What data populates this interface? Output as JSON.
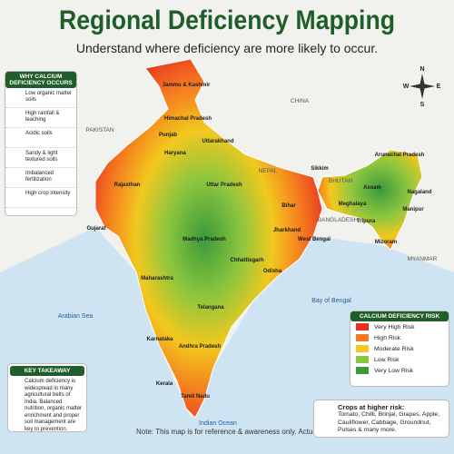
{
  "header": {
    "title": "Regional Deficiency Mapping",
    "subtitle": "Understand where deficiency are more likely to occur."
  },
  "causes": {
    "title": "WHY CALCIUM DEFICIENCY OCCURS",
    "items": [
      "Low organic matter soils",
      "High rainfall & leaching",
      "Acidic soils",
      "Sandy & light textured soils",
      "Imbalanced fertilization",
      "High crop intensity"
    ]
  },
  "map": {
    "countries": [
      "PAKISTAN",
      "CHINA",
      "NEPAL",
      "BHUTAN",
      "BANGLADESH",
      "MYANMAR"
    ],
    "seas": [
      "Arabian Sea",
      "Bay of Bengal",
      "Indian Ocean"
    ],
    "states": [
      "Jammu & Kashmir",
      "Himachal Pradesh",
      "Punjab",
      "Uttarakhand",
      "Haryana",
      "Rajasthan",
      "Uttar Pradesh",
      "Sikkim",
      "Arunachal Pradesh",
      "Assam",
      "Nagaland",
      "Meghalaya",
      "Manipur",
      "Tripura",
      "Mizoram",
      "Bihar",
      "Gujarat",
      "Madhya Pradesh",
      "Jharkhand",
      "West Bengal",
      "Chhattisgarh",
      "Odisha",
      "Maharashtra",
      "Telangana",
      "Karnataka",
      "Andhra Pradesh",
      "Kerala",
      "Tamil Nadu"
    ],
    "compass": [
      "N",
      "E",
      "S",
      "W"
    ]
  },
  "legend": {
    "title": "CALCIUM DEFICIENCY RISK",
    "items": [
      {
        "label": "Very High Risk",
        "color": "#e53222"
      },
      {
        "label": "High Risk",
        "color": "#f57c1f"
      },
      {
        "label": "Moderate Risk",
        "color": "#f2c81e"
      },
      {
        "label": "Low Risk",
        "color": "#8cc63f"
      },
      {
        "label": "Very Low Risk",
        "color": "#3c9a3a"
      }
    ]
  },
  "takeaway": {
    "title": "KEY TAKEAWAY",
    "text": "Calcium deficiency is widespread in many agricultural belts of India. Balanced nutrition, organic matter enrichment and proper soil management are key to prevention."
  },
  "crops": {
    "title": "Crops at higher risk:",
    "text": "Tomato, Chilli, Brinjal, Grapes, Apple, Cauliflower, Cabbage, Groundnut, Pulses & many more."
  },
  "note": "Note: This map is for reference & awareness only. Actual field conditions may vary."
}
